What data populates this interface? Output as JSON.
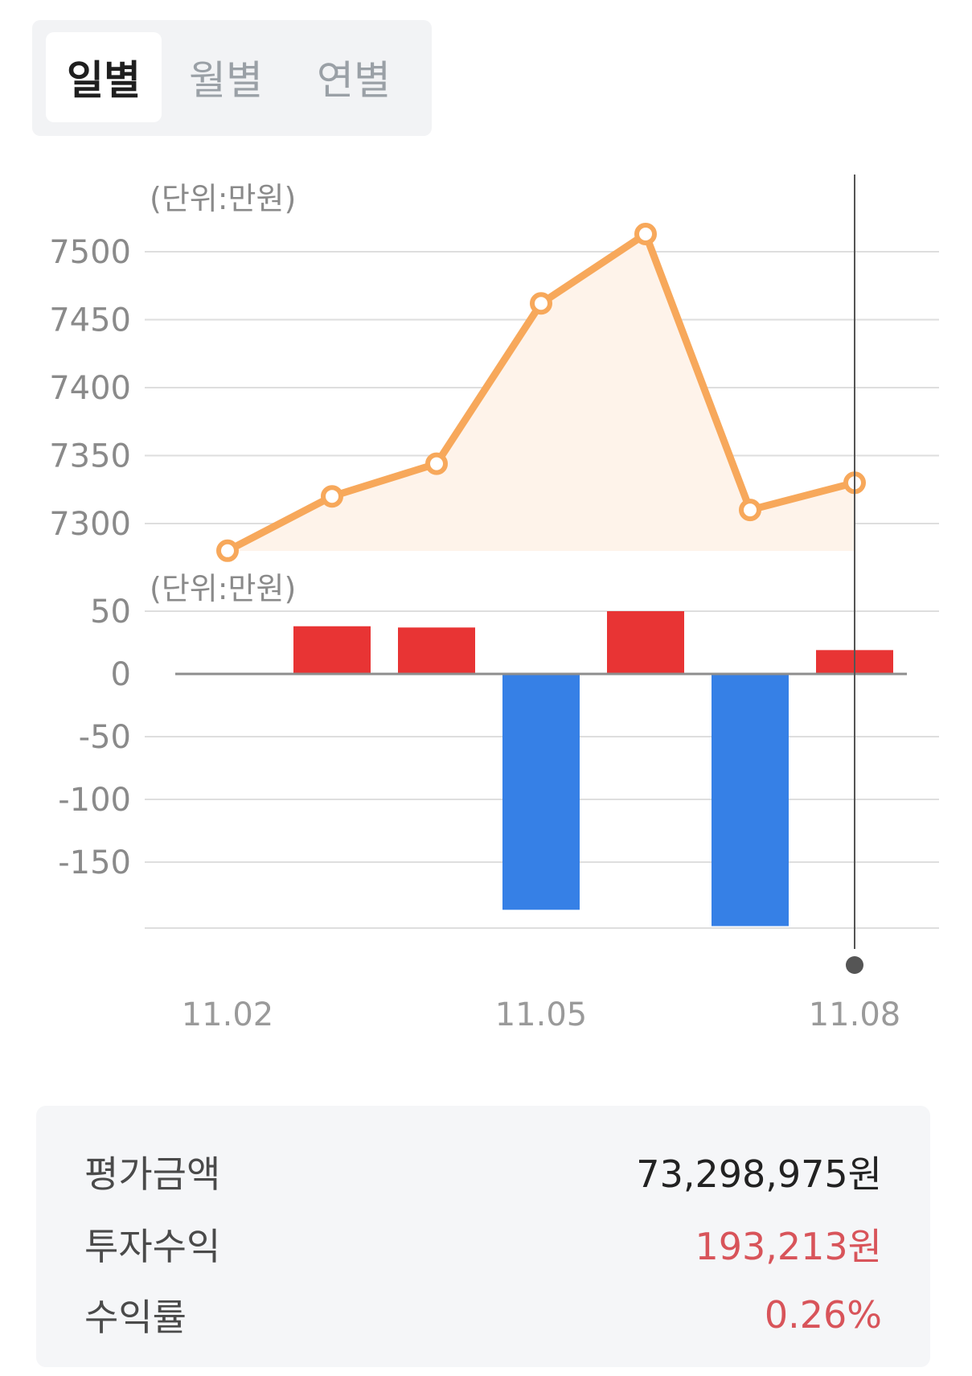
{
  "tabs": [
    {
      "label": "일별",
      "active": true
    },
    {
      "label": "월별",
      "active": false
    },
    {
      "label": "연별",
      "active": false
    }
  ],
  "chart_data": [
    {
      "type": "line",
      "unit_label": "(단위:만원)",
      "x": [
        "11.02",
        "11.03",
        "11.04",
        "11.05",
        "11.06",
        "11.07",
        "11.08"
      ],
      "values": [
        7280,
        7320,
        7344,
        7462,
        7513,
        7310,
        7330
      ],
      "yticks": [
        7500,
        7450,
        7400,
        7350,
        7300
      ],
      "ylim": [
        7280,
        7520
      ],
      "color": "#f7a85b",
      "fill": "#fef3ea",
      "grid": true
    },
    {
      "type": "bar",
      "unit_label": "(단위:만원)",
      "x": [
        "11.02",
        "11.03",
        "11.04",
        "11.05",
        "11.06",
        "11.07",
        "11.08"
      ],
      "values": [
        0,
        38,
        37,
        -188,
        50,
        -201,
        19
      ],
      "yticks": [
        50,
        0,
        -50,
        -100,
        -150
      ],
      "ylim": [
        -200,
        50
      ],
      "positive_color": "#e83434",
      "negative_color": "#3680e6",
      "grid": true
    }
  ],
  "x_tick_labels": [
    "11.02",
    "11.05",
    "11.08"
  ],
  "summary": [
    {
      "label": "평가금액",
      "value": "73,298,975원",
      "positive": false
    },
    {
      "label": "투자수익",
      "value": "193,213원",
      "positive": true
    },
    {
      "label": "수익률",
      "value": "0.26%",
      "positive": true
    }
  ]
}
